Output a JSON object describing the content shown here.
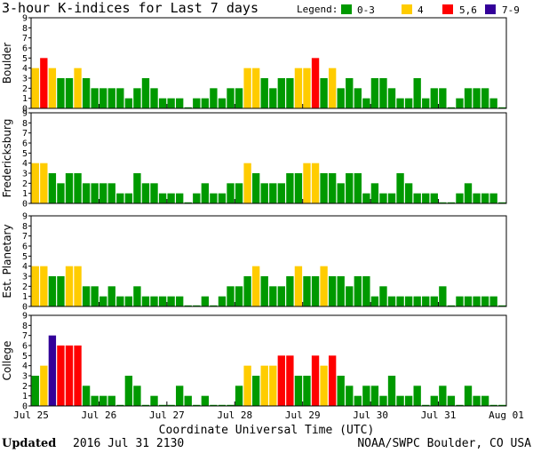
{
  "title": "3-hour K-indices for Last 7 days",
  "legend": {
    "label": "Legend:",
    "items": [
      {
        "label": "0-3",
        "color": "#009900"
      },
      {
        "label": "4",
        "color": "#ffcc00"
      },
      {
        "label": "5,6",
        "color": "#ff0000"
      },
      {
        "label": "7-9",
        "color": "#330099"
      }
    ]
  },
  "xlabel": "Coordinate Universal Time (UTC)",
  "x_ticks": [
    "Jul 25",
    "Jul 26",
    "Jul 27",
    "Jul 28",
    "Jul 29",
    "Jul 30",
    "Jul 31",
    "Aug 01"
  ],
  "footer": {
    "updated_label": "Updated",
    "updated_value": "2016 Jul 31 2130",
    "source": "NOAA/SWPC Boulder, CO USA"
  },
  "chart_data": {
    "type": "bar",
    "ylim": [
      0,
      9
    ],
    "y_ticks": [
      "0",
      "1",
      "2",
      "3",
      "4",
      "5",
      "6",
      "7",
      "8",
      "9"
    ],
    "bins_per_day": 8,
    "days": 7,
    "panels": [
      {
        "name": "Boulder",
        "values": [
          4,
          5,
          4,
          3,
          3,
          4,
          3,
          2,
          2,
          2,
          2,
          1,
          2,
          3,
          2,
          1,
          1,
          1,
          0,
          1,
          1,
          2,
          1,
          2,
          2,
          4,
          4,
          3,
          2,
          3,
          3,
          4,
          4,
          5,
          3,
          4,
          2,
          3,
          2,
          1,
          3,
          3,
          2,
          1,
          1,
          3,
          1,
          2,
          2,
          0,
          1,
          2,
          2,
          2,
          1,
          0
        ]
      },
      {
        "name": "Fredericksburg",
        "values": [
          4,
          4,
          3,
          2,
          3,
          3,
          2,
          2,
          2,
          2,
          1,
          1,
          3,
          2,
          2,
          1,
          1,
          1,
          0,
          1,
          2,
          1,
          1,
          2,
          2,
          4,
          3,
          2,
          2,
          2,
          3,
          3,
          4,
          4,
          3,
          3,
          2,
          3,
          3,
          1,
          2,
          1,
          1,
          3,
          2,
          1,
          1,
          1,
          0,
          0,
          1,
          2,
          1,
          1,
          1,
          0
        ]
      },
      {
        "name": "Est. Planetary",
        "values": [
          4,
          4,
          3,
          3,
          4,
          4,
          2,
          2,
          1,
          2,
          1,
          1,
          2,
          1,
          1,
          1,
          1,
          1,
          0,
          0,
          1,
          0,
          1,
          2,
          2,
          3,
          4,
          3,
          2,
          2,
          3,
          4,
          3,
          3,
          4,
          3,
          3,
          2,
          3,
          3,
          1,
          2,
          1,
          1,
          1,
          1,
          1,
          1,
          2,
          0,
          1,
          1,
          1,
          1,
          1,
          0
        ]
      },
      {
        "name": "College",
        "values": [
          3,
          4,
          7,
          6,
          6,
          6,
          2,
          1,
          1,
          1,
          0,
          3,
          2,
          0,
          1,
          0,
          0,
          2,
          1,
          0,
          1,
          0,
          0,
          0,
          2,
          4,
          3,
          4,
          4,
          5,
          5,
          3,
          3,
          5,
          4,
          5,
          3,
          2,
          1,
          2,
          2,
          1,
          3,
          1,
          1,
          2,
          0,
          1,
          2,
          1,
          0,
          2,
          1,
          1,
          0,
          0
        ]
      }
    ]
  }
}
